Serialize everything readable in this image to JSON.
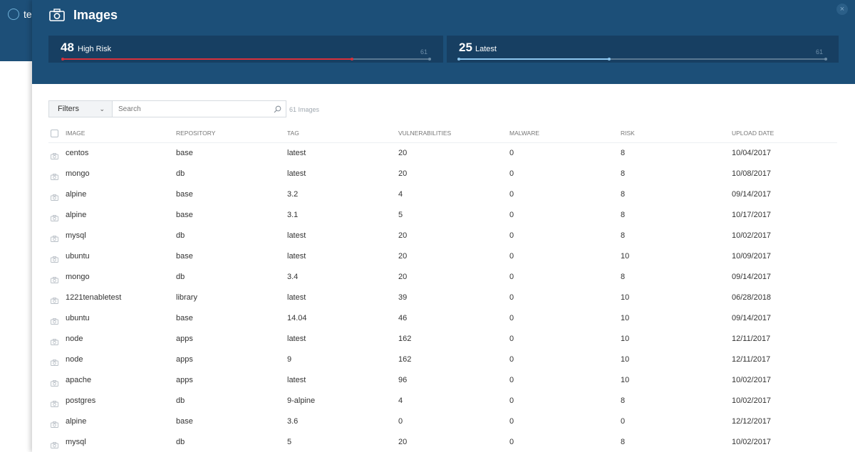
{
  "app": {
    "logo_text": "te"
  },
  "panel": {
    "title": "Images",
    "close_glyph": "×",
    "icon": "camera-icon"
  },
  "stats": {
    "high_risk": {
      "count": "48",
      "label": "High Risk",
      "total": "61",
      "fraction": 0.787,
      "color": "#d9313b"
    },
    "latest": {
      "count": "25",
      "label": "Latest",
      "total": "61",
      "fraction": 0.41,
      "color": "#8ec7ef"
    }
  },
  "toolbar": {
    "filters_label": "Filters",
    "search_placeholder": "Search",
    "count_label": "61 Images"
  },
  "table": {
    "columns": [
      "IMAGE",
      "REPOSITORY",
      "TAG",
      "VULNERABILITIES",
      "MALWARE",
      "RISK",
      "UPLOAD DATE"
    ],
    "rows": [
      [
        "centos",
        "base",
        "latest",
        "20",
        "0",
        "8",
        "10/04/2017"
      ],
      [
        "mongo",
        "db",
        "latest",
        "20",
        "0",
        "8",
        "10/08/2017"
      ],
      [
        "alpine",
        "base",
        "3.2",
        "4",
        "0",
        "8",
        "09/14/2017"
      ],
      [
        "alpine",
        "base",
        "3.1",
        "5",
        "0",
        "8",
        "10/17/2017"
      ],
      [
        "mysql",
        "db",
        "latest",
        "20",
        "0",
        "8",
        "10/02/2017"
      ],
      [
        "ubuntu",
        "base",
        "latest",
        "20",
        "0",
        "10",
        "10/09/2017"
      ],
      [
        "mongo",
        "db",
        "3.4",
        "20",
        "0",
        "8",
        "09/14/2017"
      ],
      [
        "1221tenabletest",
        "library",
        "latest",
        "39",
        "0",
        "10",
        "06/28/2018"
      ],
      [
        "ubuntu",
        "base",
        "14.04",
        "46",
        "0",
        "10",
        "09/14/2017"
      ],
      [
        "node",
        "apps",
        "latest",
        "162",
        "0",
        "10",
        "12/11/2017"
      ],
      [
        "node",
        "apps",
        "9",
        "162",
        "0",
        "10",
        "12/11/2017"
      ],
      [
        "apache",
        "apps",
        "latest",
        "96",
        "0",
        "10",
        "10/02/2017"
      ],
      [
        "postgres",
        "db",
        "9-alpine",
        "4",
        "0",
        "8",
        "10/02/2017"
      ],
      [
        "alpine",
        "base",
        "3.6",
        "0",
        "0",
        "0",
        "12/12/2017"
      ],
      [
        "mysql",
        "db",
        "5",
        "20",
        "0",
        "8",
        "10/02/2017"
      ]
    ]
  }
}
